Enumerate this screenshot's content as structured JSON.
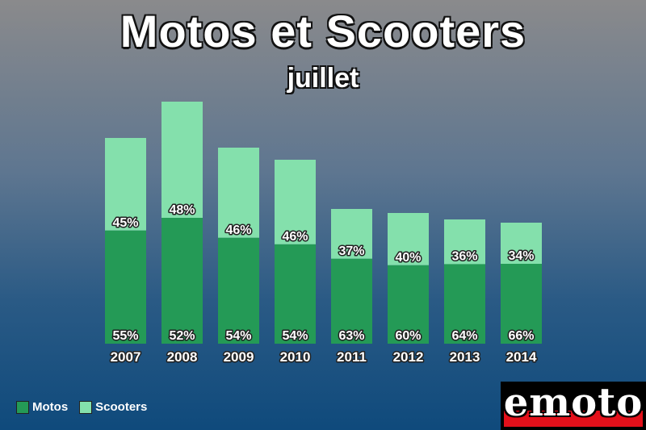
{
  "title": "Motos et Scooters",
  "subtitle": "juillet",
  "legend": {
    "motos_label": "Motos",
    "scooters_label": "Scooters"
  },
  "logo_text": "emoto",
  "colors": {
    "motos": "#249a56",
    "scooters": "#84e0ac",
    "logo_red": "#e3101a"
  },
  "chart_data": {
    "type": "bar",
    "stacked": true,
    "title": "Motos et Scooters",
    "subtitle": "juillet",
    "categories": [
      "2007",
      "2008",
      "2009",
      "2010",
      "2011",
      "2012",
      "2013",
      "2014"
    ],
    "totals": [
      255,
      300,
      243,
      228,
      167,
      162,
      154,
      150
    ],
    "series": [
      {
        "name": "Motos",
        "percent_labels": [
          "55%",
          "52%",
          "54%",
          "54%",
          "63%",
          "60%",
          "64%",
          "66%"
        ]
      },
      {
        "name": "Scooters",
        "percent_labels": [
          "45%",
          "48%",
          "46%",
          "46%",
          "37%",
          "40%",
          "36%",
          "34%"
        ]
      }
    ],
    "legend_position": "bottom-left",
    "grid": false
  }
}
